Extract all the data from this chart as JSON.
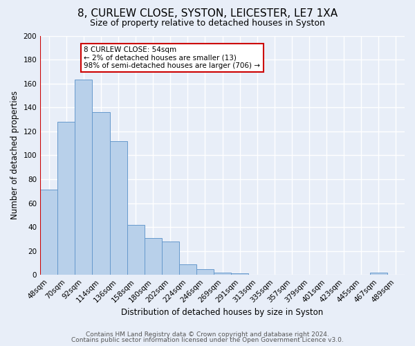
{
  "title": "8, CURLEW CLOSE, SYSTON, LEICESTER, LE7 1XA",
  "subtitle": "Size of property relative to detached houses in Syston",
  "xlabel": "Distribution of detached houses by size in Syston",
  "ylabel": "Number of detached properties",
  "bar_values": [
    71,
    128,
    163,
    136,
    112,
    42,
    31,
    28,
    9,
    5,
    2,
    1,
    0,
    0,
    0,
    0,
    0,
    0,
    0,
    2,
    0
  ],
  "bin_labels": [
    "48sqm",
    "70sqm",
    "92sqm",
    "114sqm",
    "136sqm",
    "158sqm",
    "180sqm",
    "202sqm",
    "224sqm",
    "246sqm",
    "269sqm",
    "291sqm",
    "313sqm",
    "335sqm",
    "357sqm",
    "379sqm",
    "401sqm",
    "423sqm",
    "445sqm",
    "467sqm",
    "489sqm"
  ],
  "n_bins": 21,
  "bar_color": "#b8d0ea",
  "bar_edge_color": "#6699cc",
  "vline_x_bin": 0,
  "vline_color": "#cc0000",
  "ylim": [
    0,
    200
  ],
  "yticks": [
    0,
    20,
    40,
    60,
    80,
    100,
    120,
    140,
    160,
    180,
    200
  ],
  "annotation_title": "8 CURLEW CLOSE: 54sqm",
  "annotation_line1": "← 2% of detached houses are smaller (13)",
  "annotation_line2": "98% of semi-detached houses are larger (706) →",
  "annotation_box_color": "#ffffff",
  "annotation_box_edge_color": "#cc0000",
  "footer_line1": "Contains HM Land Registry data © Crown copyright and database right 2024.",
  "footer_line2": "Contains public sector information licensed under the Open Government Licence v3.0.",
  "background_color": "#e8eef8",
  "grid_color": "#ffffff",
  "title_fontsize": 11,
  "subtitle_fontsize": 9,
  "axis_label_fontsize": 8.5,
  "tick_fontsize": 7.5,
  "footer_fontsize": 6.5,
  "annotation_fontsize": 7.5
}
